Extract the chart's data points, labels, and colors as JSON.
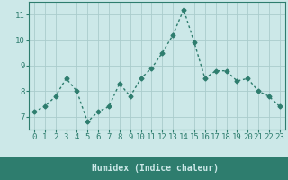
{
  "x": [
    0,
    1,
    2,
    3,
    4,
    5,
    6,
    7,
    8,
    9,
    10,
    11,
    12,
    13,
    14,
    15,
    16,
    17,
    18,
    19,
    20,
    21,
    22,
    23
  ],
  "y": [
    7.2,
    7.4,
    7.8,
    8.5,
    8.0,
    6.8,
    7.2,
    7.4,
    8.3,
    7.8,
    8.5,
    8.9,
    9.5,
    10.2,
    11.2,
    9.9,
    8.5,
    8.8,
    8.8,
    8.4,
    8.5,
    8.0,
    7.8,
    7.4
  ],
  "line_color": "#2e7d6e",
  "marker": "D",
  "marker_size": 2.5,
  "line_width": 1.0,
  "background_color": "#cce8e8",
  "plot_bg_color": "#cce8e8",
  "grid_color": "#aacccc",
  "bottom_bar_color": "#2e7d6e",
  "xlabel": "Humidex (Indice chaleur)",
  "xlim": [
    -0.5,
    23.5
  ],
  "ylim": [
    6.5,
    11.5
  ],
  "yticks": [
    7,
    8,
    9,
    10,
    11
  ],
  "xticks": [
    0,
    1,
    2,
    3,
    4,
    5,
    6,
    7,
    8,
    9,
    10,
    11,
    12,
    13,
    14,
    15,
    16,
    17,
    18,
    19,
    20,
    21,
    22,
    23
  ],
  "tick_color": "#2e7d6e",
  "xlabel_color": "#cce8e8",
  "label_fontsize": 7,
  "tick_fontsize": 6.5
}
